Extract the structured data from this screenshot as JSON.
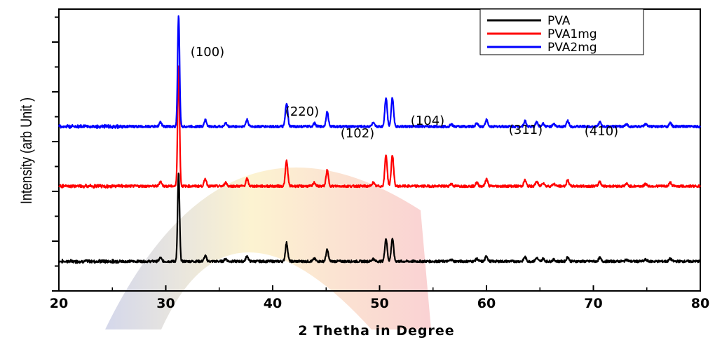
{
  "chart_data": {
    "type": "line",
    "title": "",
    "xlabel": "2 Thetha in Degree",
    "ylabel": "Intensity (arb Unit )",
    "xlim": [
      20,
      80
    ],
    "x_ticks": [
      "20",
      "30",
      "40",
      "50",
      "60",
      "70",
      "80"
    ],
    "y_ticks_labeled": false,
    "legend_position": "top-right",
    "peak_annotations": [
      {
        "text": "(100)",
        "x": 31.2
      },
      {
        "text": "(220)",
        "x": 41.3
      },
      {
        "text": "(102)",
        "x": 45.9
      },
      {
        "text": "(104)",
        "x": 51.3
      },
      {
        "text": "(311)",
        "x": 63.6
      },
      {
        "text": "(410)",
        "x": 67.6
      }
    ],
    "peaks": [
      {
        "x": 29.5,
        "rel": 0.04
      },
      {
        "x": 31.2,
        "rel": 1.0
      },
      {
        "x": 33.7,
        "rel": 0.06
      },
      {
        "x": 35.6,
        "rel": 0.03
      },
      {
        "x": 37.6,
        "rel": 0.06
      },
      {
        "x": 41.3,
        "rel": 0.21
      },
      {
        "x": 43.9,
        "rel": 0.03
      },
      {
        "x": 45.1,
        "rel": 0.13
      },
      {
        "x": 49.4,
        "rel": 0.03
      },
      {
        "x": 50.6,
        "rel": 0.26
      },
      {
        "x": 51.2,
        "rel": 0.26
      },
      {
        "x": 56.7,
        "rel": 0.02
      },
      {
        "x": 59.1,
        "rel": 0.03
      },
      {
        "x": 60.0,
        "rel": 0.06
      },
      {
        "x": 63.6,
        "rel": 0.05
      },
      {
        "x": 64.7,
        "rel": 0.04
      },
      {
        "x": 65.3,
        "rel": 0.03
      },
      {
        "x": 66.3,
        "rel": 0.02
      },
      {
        "x": 67.6,
        "rel": 0.05
      },
      {
        "x": 70.6,
        "rel": 0.04
      },
      {
        "x": 73.1,
        "rel": 0.02
      },
      {
        "x": 74.9,
        "rel": 0.02
      },
      {
        "x": 77.2,
        "rel": 0.03
      }
    ],
    "series": [
      {
        "name": "PVA",
        "color": "#000000",
        "baseline_level": 0.0,
        "main_peak_level": 0.3
      },
      {
        "name": "PVA1mg",
        "color": "#ff0000",
        "baseline_level": 0.29,
        "main_peak_level": 0.7
      },
      {
        "name": "PVA2mg",
        "color": "#0000ff",
        "baseline_level": 0.52,
        "main_peak_level": 0.9
      }
    ]
  }
}
